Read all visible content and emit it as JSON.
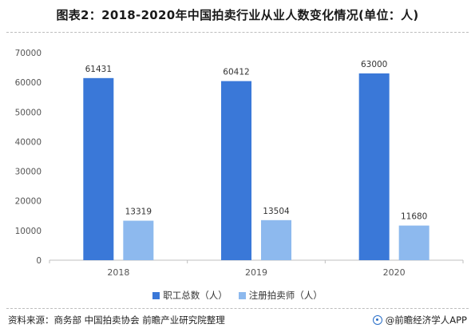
{
  "title": "图表2：2018-2020年中国拍卖行业从业人数变化情况(单位：人)",
  "footer": {
    "source": "资料来源：商务部 中国拍卖协会 前瞻产业研究院整理",
    "brand": "@前瞻经济学人APP"
  },
  "colors": {
    "series1": "#3a78d8",
    "series2": "#8db9ee",
    "axis": "#bfbfbf",
    "tick_text": "#555555",
    "label_text": "#333333"
  },
  "chart_data": {
    "type": "bar",
    "categories": [
      "2018",
      "2019",
      "2020"
    ],
    "series": [
      {
        "name": "职工总数（人）",
        "values": [
          61431,
          60412,
          63000
        ]
      },
      {
        "name": "注册拍卖师（人）",
        "values": [
          13319,
          13504,
          11680
        ]
      }
    ],
    "ylim": [
      0,
      70000
    ],
    "yticks": [
      0,
      10000,
      20000,
      30000,
      40000,
      50000,
      60000,
      70000
    ],
    "grid": false,
    "legend": "bottom",
    "data_labels": true
  }
}
